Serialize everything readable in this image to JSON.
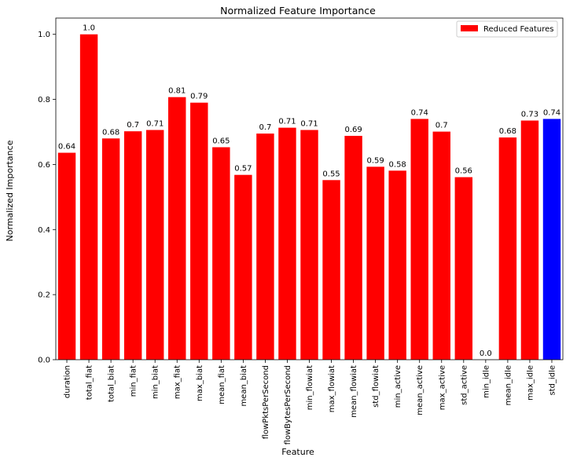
{
  "chart_data": {
    "type": "bar",
    "title": "Normalized Feature Importance",
    "xlabel": "Feature",
    "ylabel": "Normalized Importance",
    "ylim": [
      0,
      1.05
    ],
    "yticks": [
      "0.0",
      "0.2",
      "0.4",
      "0.6",
      "0.8",
      "1.0"
    ],
    "grid": false,
    "legend_position": "top-right",
    "categories": [
      "duration",
      "total_fiat",
      "total_biat",
      "min_fiat",
      "min_biat",
      "max_fiat",
      "max_biat",
      "mean_fiat",
      "mean_biat",
      "flowPktsPerSecond",
      "flowBytesPerSecond",
      "min_flowiat",
      "max_flowiat",
      "mean_flowiat",
      "std_flowiat",
      "min_active",
      "mean_active",
      "max_active",
      "std_active",
      "min_idle",
      "mean_idle",
      "max_idle",
      "std_idle"
    ],
    "values": [
      0.636,
      1.0,
      0.68,
      0.702,
      0.706,
      0.807,
      0.79,
      0.653,
      0.568,
      0.695,
      0.713,
      0.706,
      0.552,
      0.688,
      0.593,
      0.581,
      0.74,
      0.701,
      0.561,
      0.0,
      0.683,
      0.735,
      0.74
    ],
    "data_labels": [
      "0.64",
      "1.0",
      "0.68",
      "0.7",
      "0.71",
      "0.81",
      "0.79",
      "0.65",
      "0.57",
      "0.7",
      "0.71",
      "0.71",
      "0.55",
      "0.69",
      "0.59",
      "0.58",
      "0.74",
      "0.7",
      "0.56",
      "0.0",
      "0.68",
      "0.73",
      "0.74"
    ],
    "colors": [
      "#ff0000",
      "#ff0000",
      "#ff0000",
      "#ff0000",
      "#ff0000",
      "#ff0000",
      "#ff0000",
      "#ff0000",
      "#ff0000",
      "#ff0000",
      "#ff0000",
      "#ff0000",
      "#ff0000",
      "#ff0000",
      "#ff0000",
      "#ff0000",
      "#ff0000",
      "#ff0000",
      "#ff0000",
      "#ff0000",
      "#ff0000",
      "#ff0000",
      "#0000ff"
    ],
    "series": [
      {
        "name": "Reduced Features",
        "color": "#ff0000"
      }
    ]
  }
}
